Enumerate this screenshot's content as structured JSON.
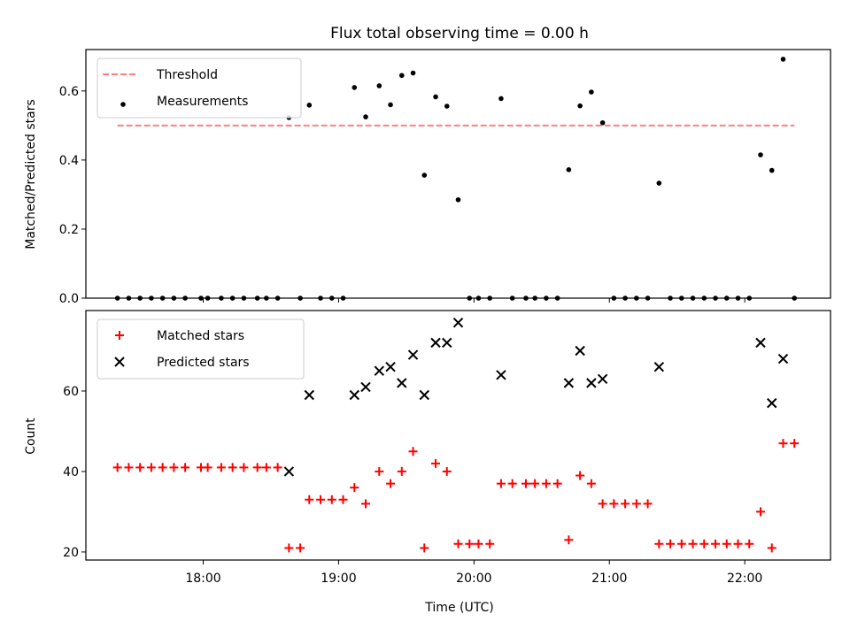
{
  "figure": {
    "title": "Flux total observing time = 0.00 h",
    "xlabel": "Time (UTC)"
  },
  "chart_data": [
    {
      "type": "scatter",
      "panel": "top",
      "ylabel": "Matched/Predicted stars",
      "xlim": [
        "17:08",
        "22:38"
      ],
      "ylim": [
        0,
        0.72
      ],
      "yticks": [
        0.0,
        0.2,
        0.4,
        0.6
      ],
      "ytick_labels": [
        "0.0",
        "0.2",
        "0.4",
        "0.6"
      ],
      "xticks": [
        "18:00",
        "19:00",
        "20:00",
        "21:00",
        "22:00"
      ],
      "legend_position": "top-left",
      "grid": false,
      "series": [
        {
          "name": "Threshold",
          "kind": "line",
          "style": "dashed",
          "color": "#ff7f7f",
          "points": [
            {
              "x": "17:22",
              "y": 0.5
            },
            {
              "x": "22:22",
              "y": 0.5
            }
          ]
        },
        {
          "name": "Measurements",
          "kind": "scatter",
          "marker": "dot",
          "color": "#000000",
          "points": [
            {
              "x": "17:22",
              "y": 0
            },
            {
              "x": "17:27",
              "y": 0
            },
            {
              "x": "17:32",
              "y": 0
            },
            {
              "x": "17:37",
              "y": 0
            },
            {
              "x": "17:42",
              "y": 0
            },
            {
              "x": "17:47",
              "y": 0
            },
            {
              "x": "17:52",
              "y": 0
            },
            {
              "x": "17:59",
              "y": 0
            },
            {
              "x": "18:02",
              "y": 0
            },
            {
              "x": "18:08",
              "y": 0
            },
            {
              "x": "18:13",
              "y": 0
            },
            {
              "x": "18:18",
              "y": 0
            },
            {
              "x": "18:24",
              "y": 0
            },
            {
              "x": "18:28",
              "y": 0
            },
            {
              "x": "18:33",
              "y": 0
            },
            {
              "x": "18:38",
              "y": 0.523
            },
            {
              "x": "18:43",
              "y": 0
            },
            {
              "x": "18:47",
              "y": 0.559
            },
            {
              "x": "18:52",
              "y": 0
            },
            {
              "x": "18:57",
              "y": 0
            },
            {
              "x": "19:02",
              "y": 0
            },
            {
              "x": "19:07",
              "y": 0.61
            },
            {
              "x": "19:12",
              "y": 0.525
            },
            {
              "x": "19:18",
              "y": 0.615
            },
            {
              "x": "19:23",
              "y": 0.56
            },
            {
              "x": "19:28",
              "y": 0.645
            },
            {
              "x": "19:33",
              "y": 0.652
            },
            {
              "x": "19:38",
              "y": 0.356
            },
            {
              "x": "19:43",
              "y": 0.583
            },
            {
              "x": "19:48",
              "y": 0.556
            },
            {
              "x": "19:53",
              "y": 0.285
            },
            {
              "x": "19:58",
              "y": 0
            },
            {
              "x": "20:02",
              "y": 0
            },
            {
              "x": "20:07",
              "y": 0
            },
            {
              "x": "20:12",
              "y": 0.578
            },
            {
              "x": "20:17",
              "y": 0
            },
            {
              "x": "20:23",
              "y": 0
            },
            {
              "x": "20:27",
              "y": 0
            },
            {
              "x": "20:32",
              "y": 0
            },
            {
              "x": "20:37",
              "y": 0
            },
            {
              "x": "20:42",
              "y": 0.372
            },
            {
              "x": "20:47",
              "y": 0.557
            },
            {
              "x": "20:52",
              "y": 0.597
            },
            {
              "x": "20:57",
              "y": 0.508
            },
            {
              "x": "21:02",
              "y": 0
            },
            {
              "x": "21:07",
              "y": 0
            },
            {
              "x": "21:12",
              "y": 0
            },
            {
              "x": "21:17",
              "y": 0
            },
            {
              "x": "21:22",
              "y": 0.333
            },
            {
              "x": "21:27",
              "y": 0
            },
            {
              "x": "21:32",
              "y": 0
            },
            {
              "x": "21:37",
              "y": 0
            },
            {
              "x": "21:42",
              "y": 0
            },
            {
              "x": "21:47",
              "y": 0
            },
            {
              "x": "21:52",
              "y": 0
            },
            {
              "x": "21:57",
              "y": 0
            },
            {
              "x": "22:02",
              "y": 0
            },
            {
              "x": "22:07",
              "y": 0.415
            },
            {
              "x": "22:12",
              "y": 0.37
            },
            {
              "x": "22:17",
              "y": 0.692
            },
            {
              "x": "22:22",
              "y": 0
            }
          ]
        }
      ]
    },
    {
      "type": "scatter",
      "panel": "bottom",
      "ylabel": "Count",
      "xlim": [
        "17:08",
        "22:38"
      ],
      "ylim": [
        18,
        80
      ],
      "yticks": [
        20,
        40,
        60
      ],
      "ytick_labels": [
        "20",
        "40",
        "60"
      ],
      "xticks": [
        "18:00",
        "19:00",
        "20:00",
        "21:00",
        "22:00"
      ],
      "xtick_labels": [
        "18:00",
        "19:00",
        "20:00",
        "21:00",
        "22:00"
      ],
      "legend_position": "top-left",
      "grid": false,
      "series": [
        {
          "name": "Matched stars",
          "kind": "scatter",
          "marker": "plus",
          "color": "#ff0000",
          "points": [
            {
              "x": "17:22",
              "y": 41
            },
            {
              "x": "17:27",
              "y": 41
            },
            {
              "x": "17:32",
              "y": 41
            },
            {
              "x": "17:37",
              "y": 41
            },
            {
              "x": "17:42",
              "y": 41
            },
            {
              "x": "17:47",
              "y": 41
            },
            {
              "x": "17:52",
              "y": 41
            },
            {
              "x": "17:59",
              "y": 41
            },
            {
              "x": "18:02",
              "y": 41
            },
            {
              "x": "18:08",
              "y": 41
            },
            {
              "x": "18:13",
              "y": 41
            },
            {
              "x": "18:18",
              "y": 41
            },
            {
              "x": "18:24",
              "y": 41
            },
            {
              "x": "18:28",
              "y": 41
            },
            {
              "x": "18:33",
              "y": 41
            },
            {
              "x": "18:38",
              "y": 21
            },
            {
              "x": "18:43",
              "y": 21
            },
            {
              "x": "18:47",
              "y": 33
            },
            {
              "x": "18:52",
              "y": 33
            },
            {
              "x": "18:57",
              "y": 33
            },
            {
              "x": "19:02",
              "y": 33
            },
            {
              "x": "19:07",
              "y": 36
            },
            {
              "x": "19:12",
              "y": 32
            },
            {
              "x": "19:18",
              "y": 40
            },
            {
              "x": "19:23",
              "y": 37
            },
            {
              "x": "19:28",
              "y": 40
            },
            {
              "x": "19:33",
              "y": 45
            },
            {
              "x": "19:38",
              "y": 21
            },
            {
              "x": "19:43",
              "y": 42
            },
            {
              "x": "19:48",
              "y": 40
            },
            {
              "x": "19:53",
              "y": 22
            },
            {
              "x": "19:58",
              "y": 22
            },
            {
              "x": "20:02",
              "y": 22
            },
            {
              "x": "20:07",
              "y": 22
            },
            {
              "x": "20:12",
              "y": 37
            },
            {
              "x": "20:17",
              "y": 37
            },
            {
              "x": "20:23",
              "y": 37
            },
            {
              "x": "20:27",
              "y": 37
            },
            {
              "x": "20:32",
              "y": 37
            },
            {
              "x": "20:37",
              "y": 37
            },
            {
              "x": "20:42",
              "y": 23
            },
            {
              "x": "20:47",
              "y": 39
            },
            {
              "x": "20:52",
              "y": 37
            },
            {
              "x": "20:57",
              "y": 32
            },
            {
              "x": "21:02",
              "y": 32
            },
            {
              "x": "21:07",
              "y": 32
            },
            {
              "x": "21:12",
              "y": 32
            },
            {
              "x": "21:17",
              "y": 32
            },
            {
              "x": "21:22",
              "y": 22
            },
            {
              "x": "21:27",
              "y": 22
            },
            {
              "x": "21:32",
              "y": 22
            },
            {
              "x": "21:37",
              "y": 22
            },
            {
              "x": "21:42",
              "y": 22
            },
            {
              "x": "21:47",
              "y": 22
            },
            {
              "x": "21:52",
              "y": 22
            },
            {
              "x": "21:57",
              "y": 22
            },
            {
              "x": "22:02",
              "y": 22
            },
            {
              "x": "22:07",
              "y": 30
            },
            {
              "x": "22:12",
              "y": 21
            },
            {
              "x": "22:17",
              "y": 47
            },
            {
              "x": "22:22",
              "y": 47
            }
          ]
        },
        {
          "name": "Predicted stars",
          "kind": "scatter",
          "marker": "x",
          "color": "#000000",
          "points": [
            {
              "x": "18:38",
              "y": 40
            },
            {
              "x": "18:47",
              "y": 59
            },
            {
              "x": "19:07",
              "y": 59
            },
            {
              "x": "19:12",
              "y": 61
            },
            {
              "x": "19:18",
              "y": 65
            },
            {
              "x": "19:23",
              "y": 66
            },
            {
              "x": "19:28",
              "y": 62
            },
            {
              "x": "19:33",
              "y": 69
            },
            {
              "x": "19:38",
              "y": 59
            },
            {
              "x": "19:43",
              "y": 72
            },
            {
              "x": "19:48",
              "y": 72
            },
            {
              "x": "19:53",
              "y": 77
            },
            {
              "x": "20:12",
              "y": 64
            },
            {
              "x": "20:42",
              "y": 62
            },
            {
              "x": "20:47",
              "y": 70
            },
            {
              "x": "20:52",
              "y": 62
            },
            {
              "x": "20:57",
              "y": 63
            },
            {
              "x": "21:22",
              "y": 66
            },
            {
              "x": "22:07",
              "y": 72
            },
            {
              "x": "22:12",
              "y": 57
            },
            {
              "x": "22:17",
              "y": 68
            }
          ]
        }
      ]
    }
  ]
}
